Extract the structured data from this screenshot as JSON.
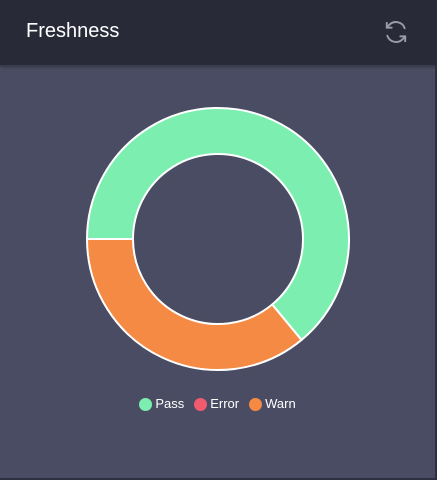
{
  "header": {
    "title": "Freshness",
    "refresh_icon": "refresh-icon"
  },
  "colors": {
    "pass": "#7cefb0",
    "error": "#f25a6e",
    "warn": "#f48a43",
    "background": "#4a4c63",
    "header_background": "#282a38"
  },
  "chart_data": {
    "type": "pie",
    "donut": true,
    "title": "",
    "categories": [
      "Pass",
      "Error",
      "Warn"
    ],
    "values": [
      64,
      0,
      36
    ],
    "colors": [
      "#7cefb0",
      "#f25a6e",
      "#f48a43"
    ],
    "legend": "bottom-center"
  },
  "legend": {
    "items": [
      {
        "label": "Pass",
        "color": "#7cefb0"
      },
      {
        "label": "Error",
        "color": "#f25a6e"
      },
      {
        "label": "Warn",
        "color": "#f48a43"
      }
    ]
  }
}
